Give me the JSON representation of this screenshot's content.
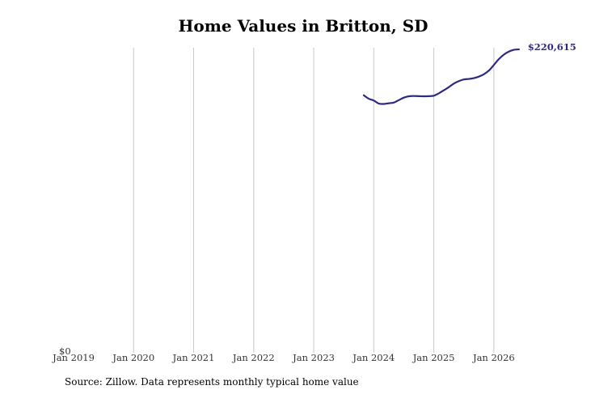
{
  "chart_data": {
    "type": "line",
    "title": "Home Values in Britton, SD",
    "xlabel": "",
    "ylabel": "",
    "x_ticks": [
      "Jan 2019",
      "Jan 2020",
      "Jan 2021",
      "Jan 2022",
      "Jan 2023",
      "Jan 2024",
      "Jan 2025",
      "Jan 2026"
    ],
    "y_ticks": [
      "$0"
    ],
    "xlim": [
      "2019-01",
      "2026-07"
    ],
    "ylim": [
      0,
      220615
    ],
    "grid": "vertical",
    "legend": "none",
    "series": [
      {
        "color": "#2e2a7f",
        "x": [
          "2023-11",
          "2023-12",
          "2024-01",
          "2024-02",
          "2024-03",
          "2024-04",
          "2024-05",
          "2024-06",
          "2024-07",
          "2024-08",
          "2024-09",
          "2024-10",
          "2024-11",
          "2024-12",
          "2025-01",
          "2025-02",
          "2025-03",
          "2025-04",
          "2025-05",
          "2025-06",
          "2025-07",
          "2025-08",
          "2025-09",
          "2025-10",
          "2025-11",
          "2025-12",
          "2026-01",
          "2026-02",
          "2026-03",
          "2026-04",
          "2026-05",
          "2026-06"
        ],
        "values": [
          187000,
          184500,
          183200,
          181000,
          180700,
          181200,
          181700,
          183500,
          185300,
          186300,
          186500,
          186400,
          186300,
          186400,
          186700,
          188500,
          190700,
          193000,
          195600,
          197400,
          198600,
          199000,
          199600,
          200700,
          202400,
          205100,
          209200,
          213500,
          216800,
          219000,
          220300,
          220615
        ]
      }
    ],
    "annotations": [
      {
        "label": "$220,615",
        "x": "2026-06",
        "y": 220615
      }
    ]
  },
  "source_note": "Source: Zillow. Data represents monthly typical home value"
}
